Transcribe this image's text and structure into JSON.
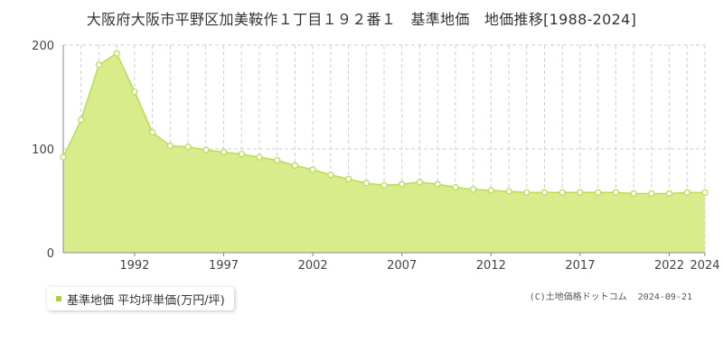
{
  "title": "大阪府大阪市平野区加美鞍作１丁目１９２番１　基準地価　地価推移[1988-2024]",
  "legend": {
    "label": "基準地価 平均坪単価(万円/坪)",
    "color": "#a8d23c"
  },
  "copyright": {
    "text": "(C)土地価格ドットコム",
    "date": "2024-09-21"
  },
  "colors": {
    "area": "#d9ec8c",
    "line": "#b7dc56",
    "point_fill": "#ffffff",
    "point_stroke": "#b7dc56",
    "grid": "#cfcfcf",
    "axis": "#888888"
  },
  "chart_data": {
    "type": "area",
    "title": "大阪府大阪市平野区加美鞍作１丁目１９２番１　基準地価　地価推移[1988-2024]",
    "xlabel": "",
    "ylabel": "",
    "xlim": [
      1988,
      2024
    ],
    "ylim": [
      0,
      200
    ],
    "y_ticks": [
      0,
      100,
      200
    ],
    "x_tick_labels": [
      "1992",
      "1997",
      "2002",
      "2007",
      "2012",
      "2017",
      "2022",
      "2024"
    ],
    "grid": "vertical dashed per year; horizontal dashed at 100",
    "series": [
      {
        "name": "基準地価 平均坪単価(万円/坪)",
        "x": [
          1988,
          1989,
          1990,
          1991,
          1992,
          1993,
          1994,
          1995,
          1996,
          1997,
          1998,
          1999,
          2000,
          2001,
          2002,
          2003,
          2004,
          2005,
          2006,
          2007,
          2008,
          2009,
          2010,
          2011,
          2012,
          2013,
          2014,
          2015,
          2016,
          2017,
          2018,
          2019,
          2020,
          2021,
          2022,
          2023,
          2024
        ],
        "values": [
          92,
          128,
          181,
          192,
          155,
          116,
          103,
          102,
          99,
          97,
          95,
          92,
          89,
          84,
          80,
          75,
          71,
          67,
          65,
          66,
          68,
          66,
          63,
          61,
          60,
          59,
          58,
          58,
          58,
          58,
          58,
          58,
          57,
          57,
          57,
          58,
          58
        ]
      }
    ]
  }
}
